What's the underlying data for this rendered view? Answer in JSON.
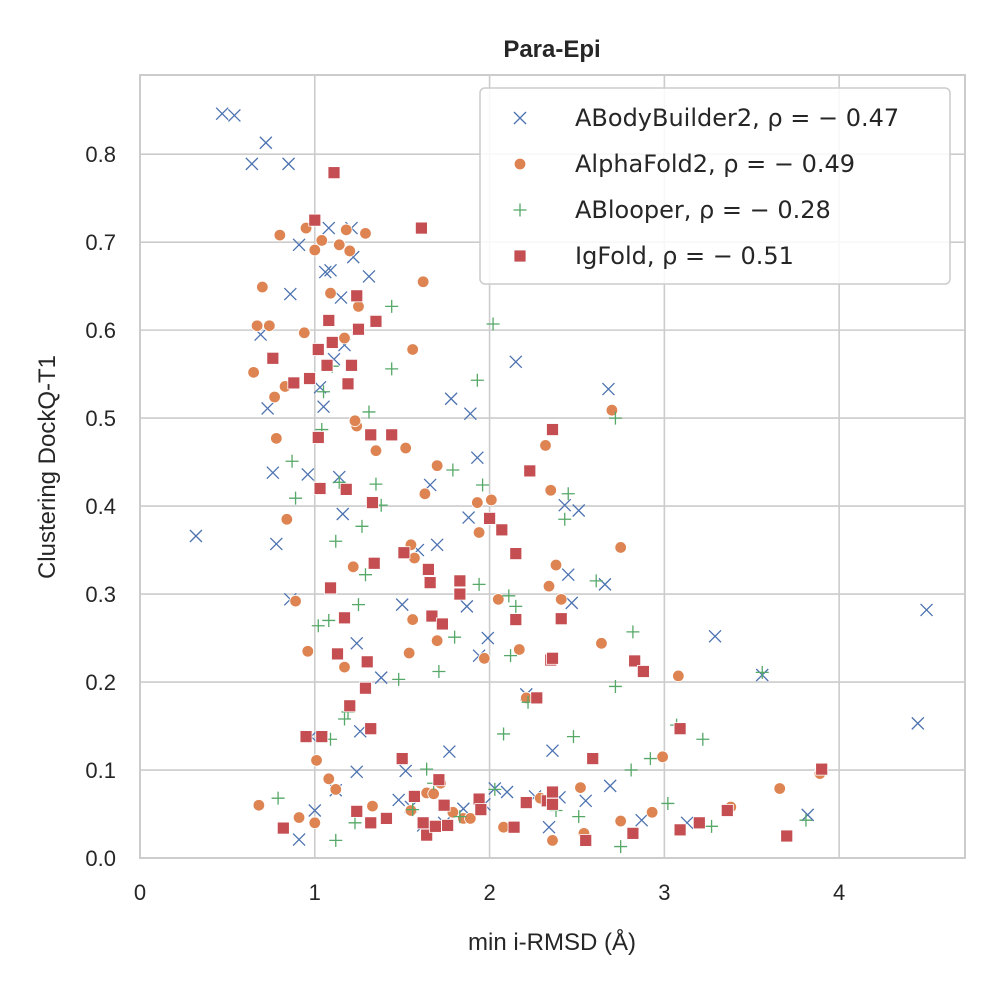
{
  "chart_data": {
    "type": "scatter",
    "title": "Para-Epi",
    "xlabel": "min i-RMSD (Å)",
    "ylabel": "Clustering DockQ-T1",
    "xlim": [
      0,
      4.72
    ],
    "ylim": [
      0,
      0.89
    ],
    "xticks": [
      "0",
      "1",
      "2",
      "3",
      "4"
    ],
    "yticks": [
      "0.0",
      "0.1",
      "0.2",
      "0.3",
      "0.4",
      "0.5",
      "0.6",
      "0.7",
      "0.8"
    ],
    "grid": true,
    "legend_position": "top-right",
    "series": [
      {
        "name": "ABodyBuilder2, ρ = − 0.47",
        "marker": "x",
        "color": "#4c72b0",
        "points": [
          [
            0.47,
            0.846
          ],
          [
            0.54,
            0.844
          ],
          [
            0.64,
            0.789
          ],
          [
            0.72,
            0.813
          ],
          [
            0.85,
            0.789
          ],
          [
            0.32,
            0.366
          ],
          [
            0.69,
            0.595
          ],
          [
            0.73,
            0.511
          ],
          [
            0.76,
            0.438
          ],
          [
            0.78,
            0.357
          ],
          [
            0.86,
            0.641
          ],
          [
            0.86,
            0.294
          ],
          [
            0.91,
            0.697
          ],
          [
            0.91,
            0.021
          ],
          [
            0.96,
            0.436
          ],
          [
            0.98,
            0.138
          ],
          [
            1.0,
            0.054
          ],
          [
            1.03,
            0.535
          ],
          [
            1.05,
            0.513
          ],
          [
            1.06,
            0.666
          ],
          [
            1.08,
            0.716
          ],
          [
            1.09,
            0.668
          ],
          [
            1.11,
            0.567
          ],
          [
            1.12,
            0.077
          ],
          [
            1.14,
            0.433
          ],
          [
            1.15,
            0.637
          ],
          [
            1.16,
            0.391
          ],
          [
            1.17,
            0.583
          ],
          [
            1.21,
            0.716
          ],
          [
            1.22,
            0.683
          ],
          [
            1.24,
            0.244
          ],
          [
            1.24,
            0.098
          ],
          [
            1.26,
            0.144
          ],
          [
            1.31,
            0.661
          ],
          [
            1.38,
            0.205
          ],
          [
            1.48,
            0.066
          ],
          [
            1.5,
            0.288
          ],
          [
            1.52,
            0.099
          ],
          [
            1.55,
            0.058
          ],
          [
            1.59,
            0.35
          ],
          [
            1.62,
            0.037
          ],
          [
            1.66,
            0.424
          ],
          [
            1.7,
            0.356
          ],
          [
            1.74,
            0.04
          ],
          [
            1.77,
            0.121
          ],
          [
            1.78,
            0.522
          ],
          [
            1.85,
            0.056
          ],
          [
            1.87,
            0.286
          ],
          [
            1.88,
            0.387
          ],
          [
            1.89,
            0.505
          ],
          [
            1.93,
            0.455
          ],
          [
            1.94,
            0.23
          ],
          [
            1.97,
            0.061
          ],
          [
            1.99,
            0.25
          ],
          [
            2.03,
            0.079
          ],
          [
            2.1,
            0.075
          ],
          [
            2.15,
            0.564
          ],
          [
            2.21,
            0.186
          ],
          [
            2.26,
            0.07
          ],
          [
            2.36,
            0.122
          ],
          [
            2.34,
            0.035
          ],
          [
            2.4,
            0.069
          ],
          [
            2.43,
            0.401
          ],
          [
            2.45,
            0.322
          ],
          [
            2.47,
            0.29
          ],
          [
            2.51,
            0.395
          ],
          [
            2.55,
            0.065
          ],
          [
            2.66,
            0.311
          ],
          [
            2.68,
            0.533
          ],
          [
            2.69,
            0.082
          ],
          [
            2.87,
            0.043
          ],
          [
            3.13,
            0.04
          ],
          [
            3.29,
            0.252
          ],
          [
            3.56,
            0.208
          ],
          [
            3.82,
            0.049
          ],
          [
            4.45,
            0.153
          ],
          [
            4.5,
            0.282
          ]
        ]
      },
      {
        "name": "AlphaFold2, ρ = − 0.49",
        "marker": "o",
        "color": "#dd8452",
        "points": [
          [
            0.65,
            0.552
          ],
          [
            0.67,
            0.605
          ],
          [
            0.68,
            0.06
          ],
          [
            0.7,
            0.649
          ],
          [
            0.74,
            0.605
          ],
          [
            0.77,
            0.524
          ],
          [
            0.78,
            0.477
          ],
          [
            0.8,
            0.708
          ],
          [
            0.83,
            0.536
          ],
          [
            0.84,
            0.385
          ],
          [
            0.89,
            0.292
          ],
          [
            0.91,
            0.046
          ],
          [
            0.94,
            0.597
          ],
          [
            0.95,
            0.716
          ],
          [
            0.96,
            0.235
          ],
          [
            1.0,
            0.691
          ],
          [
            1.0,
            0.04
          ],
          [
            1.01,
            0.111
          ],
          [
            1.04,
            0.702
          ],
          [
            1.08,
            0.09
          ],
          [
            1.09,
            0.642
          ],
          [
            1.12,
            0.078
          ],
          [
            1.14,
            0.697
          ],
          [
            1.17,
            0.591
          ],
          [
            1.17,
            0.217
          ],
          [
            1.18,
            0.714
          ],
          [
            1.2,
            0.69
          ],
          [
            1.22,
            0.331
          ],
          [
            1.24,
            0.491
          ],
          [
            1.23,
            0.497
          ],
          [
            1.25,
            0.627
          ],
          [
            1.29,
            0.71
          ],
          [
            1.33,
            0.059
          ],
          [
            1.35,
            0.463
          ],
          [
            1.52,
            0.466
          ],
          [
            1.54,
            0.233
          ],
          [
            1.55,
            0.356
          ],
          [
            1.55,
            0.054
          ],
          [
            1.56,
            0.271
          ],
          [
            1.56,
            0.578
          ],
          [
            1.57,
            0.341
          ],
          [
            1.62,
            0.655
          ],
          [
            1.63,
            0.414
          ],
          [
            1.64,
            0.074
          ],
          [
            1.68,
            0.073
          ],
          [
            1.7,
            0.446
          ],
          [
            1.7,
            0.247
          ],
          [
            1.72,
            0.085
          ],
          [
            1.79,
            0.052
          ],
          [
            1.85,
            0.045
          ],
          [
            1.89,
            0.045
          ],
          [
            1.93,
            0.404
          ],
          [
            1.94,
            0.37
          ],
          [
            1.97,
            0.227
          ],
          [
            2.01,
            0.407
          ],
          [
            2.05,
            0.294
          ],
          [
            2.08,
            0.035
          ],
          [
            2.17,
            0.237
          ],
          [
            2.21,
            0.182
          ],
          [
            2.29,
            0.068
          ],
          [
            2.32,
            0.469
          ],
          [
            2.34,
            0.309
          ],
          [
            2.35,
            0.418
          ],
          [
            2.36,
            0.02
          ],
          [
            2.38,
            0.333
          ],
          [
            2.41,
            0.294
          ],
          [
            2.52,
            0.08
          ],
          [
            2.54,
            0.028
          ],
          [
            2.64,
            0.244
          ],
          [
            2.7,
            0.509
          ],
          [
            2.75,
            0.353
          ],
          [
            2.75,
            0.042
          ],
          [
            2.93,
            0.052
          ],
          [
            2.99,
            0.115
          ],
          [
            3.08,
            0.207
          ],
          [
            3.38,
            0.058
          ],
          [
            3.66,
            0.079
          ],
          [
            3.89,
            0.096
          ]
        ]
      },
      {
        "name": "ABlooper, ρ = − 0.28",
        "marker": "+",
        "color": "#55a868",
        "points": [
          [
            0.79,
            0.068
          ],
          [
            0.87,
            0.451
          ],
          [
            0.89,
            0.409
          ],
          [
            1.02,
            0.264
          ],
          [
            1.04,
            0.487
          ],
          [
            1.05,
            0.53
          ],
          [
            1.08,
            0.27
          ],
          [
            1.09,
            0.135
          ],
          [
            1.1,
            0.559
          ],
          [
            1.12,
            0.02
          ],
          [
            1.12,
            0.36
          ],
          [
            1.14,
            0.427
          ],
          [
            1.17,
            0.158
          ],
          [
            1.19,
            0.166
          ],
          [
            1.23,
            0.04
          ],
          [
            1.25,
            0.288
          ],
          [
            1.27,
            0.377
          ],
          [
            1.29,
            0.322
          ],
          [
            1.31,
            0.507
          ],
          [
            1.35,
            0.425
          ],
          [
            1.38,
            0.401
          ],
          [
            1.44,
            0.627
          ],
          [
            1.44,
            0.556
          ],
          [
            1.48,
            0.203
          ],
          [
            1.56,
            0.055
          ],
          [
            1.64,
            0.101
          ],
          [
            1.68,
            0.085
          ],
          [
            1.71,
            0.212
          ],
          [
            1.79,
            0.441
          ],
          [
            1.8,
            0.251
          ],
          [
            1.83,
            0.047
          ],
          [
            1.93,
            0.543
          ],
          [
            1.94,
            0.311
          ],
          [
            1.96,
            0.424
          ],
          [
            2.02,
            0.607
          ],
          [
            2.03,
            0.078
          ],
          [
            2.08,
            0.141
          ],
          [
            2.11,
            0.298
          ],
          [
            2.12,
            0.23
          ],
          [
            2.15,
            0.286
          ],
          [
            2.22,
            0.177
          ],
          [
            2.38,
            0.054
          ],
          [
            2.43,
            0.385
          ],
          [
            2.45,
            0.414
          ],
          [
            2.48,
            0.138
          ],
          [
            2.51,
            0.047
          ],
          [
            2.61,
            0.315
          ],
          [
            2.72,
            0.195
          ],
          [
            2.72,
            0.5
          ],
          [
            2.75,
            0.013
          ],
          [
            2.81,
            0.1
          ],
          [
            2.82,
            0.257
          ],
          [
            2.92,
            0.113
          ],
          [
            3.02,
            0.062
          ],
          [
            3.07,
            0.151
          ],
          [
            3.22,
            0.135
          ],
          [
            3.27,
            0.036
          ],
          [
            3.56,
            0.211
          ],
          [
            3.81,
            0.043
          ]
        ]
      },
      {
        "name": "IgFold, ρ = − 0.51",
        "marker": "s",
        "color": "#c44e52",
        "points": [
          [
            0.82,
            0.034
          ],
          [
            0.76,
            0.568
          ],
          [
            0.88,
            0.54
          ],
          [
            0.95,
            0.138
          ],
          [
            0.97,
            0.545
          ],
          [
            1.0,
            0.725
          ],
          [
            1.02,
            0.578
          ],
          [
            1.02,
            0.478
          ],
          [
            1.03,
            0.42
          ],
          [
            1.04,
            0.138
          ],
          [
            1.07,
            0.56
          ],
          [
            1.08,
            0.611
          ],
          [
            1.09,
            0.307
          ],
          [
            1.1,
            0.586
          ],
          [
            1.11,
            0.779
          ],
          [
            1.13,
            0.232
          ],
          [
            1.17,
            0.273
          ],
          [
            1.18,
            0.419
          ],
          [
            1.19,
            0.539
          ],
          [
            1.2,
            0.173
          ],
          [
            1.21,
            0.56
          ],
          [
            1.24,
            0.639
          ],
          [
            1.24,
            0.053
          ],
          [
            1.25,
            0.601
          ],
          [
            1.29,
            0.193
          ],
          [
            1.3,
            0.223
          ],
          [
            1.32,
            0.481
          ],
          [
            1.32,
            0.147
          ],
          [
            1.32,
            0.04
          ],
          [
            1.33,
            0.404
          ],
          [
            1.34,
            0.335
          ],
          [
            1.35,
            0.61
          ],
          [
            1.41,
            0.045
          ],
          [
            1.44,
            0.481
          ],
          [
            1.5,
            0.113
          ],
          [
            1.51,
            0.347
          ],
          [
            1.57,
            0.07
          ],
          [
            1.61,
            0.716
          ],
          [
            1.62,
            0.04
          ],
          [
            1.64,
            0.026
          ],
          [
            1.65,
            0.328
          ],
          [
            1.66,
            0.313
          ],
          [
            1.67,
            0.275
          ],
          [
            1.69,
            0.036
          ],
          [
            1.71,
            0.089
          ],
          [
            1.73,
            0.266
          ],
          [
            1.74,
            0.06
          ],
          [
            1.76,
            0.037
          ],
          [
            1.83,
            0.315
          ],
          [
            1.83,
            0.3
          ],
          [
            1.94,
            0.067
          ],
          [
            1.95,
            0.055
          ],
          [
            2.0,
            0.386
          ],
          [
            2.07,
            0.373
          ],
          [
            2.14,
            0.035
          ],
          [
            2.15,
            0.271
          ],
          [
            2.15,
            0.346
          ],
          [
            2.21,
            0.063
          ],
          [
            2.23,
            0.44
          ],
          [
            2.27,
            0.182
          ],
          [
            2.33,
            0.065
          ],
          [
            2.35,
            0.225
          ],
          [
            2.36,
            0.487
          ],
          [
            2.36,
            0.075
          ],
          [
            2.36,
            0.061
          ],
          [
            2.36,
            0.227
          ],
          [
            2.41,
            0.272
          ],
          [
            2.55,
            0.02
          ],
          [
            2.59,
            0.113
          ],
          [
            2.82,
            0.028
          ],
          [
            2.83,
            0.224
          ],
          [
            2.88,
            0.212
          ],
          [
            3.09,
            0.032
          ],
          [
            3.09,
            0.147
          ],
          [
            3.2,
            0.04
          ],
          [
            3.36,
            0.054
          ],
          [
            3.7,
            0.025
          ],
          [
            3.9,
            0.101
          ]
        ]
      }
    ]
  }
}
